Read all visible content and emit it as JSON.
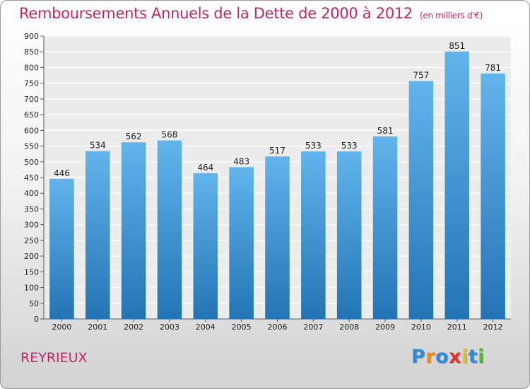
{
  "title": "Remboursements Annuels de la Dette de 2000 à 2012",
  "unit": "(en milliers d'€)",
  "location": "REYRIEUX",
  "brand": {
    "letters": [
      "P",
      "r",
      "o",
      "x",
      "i",
      "t",
      "i"
    ],
    "colors": [
      "#2e8bd8",
      "#f08a1c",
      "#2e8bd8",
      "#e0322e",
      "#d6c21e",
      "#2e8bd8",
      "#58b431"
    ]
  },
  "colors": {
    "bar_top": "#62b4ec",
    "bar_bottom": "#2374b4",
    "accent": "#c0275e"
  },
  "chart_data": {
    "type": "bar",
    "categories": [
      "2000",
      "2001",
      "2002",
      "2003",
      "2004",
      "2005",
      "2006",
      "2007",
      "2008",
      "2009",
      "2010",
      "2011",
      "2012"
    ],
    "values": [
      446,
      534,
      562,
      568,
      464,
      483,
      517,
      533,
      533,
      581,
      757,
      851,
      781
    ],
    "yticks": [
      0,
      50,
      100,
      150,
      200,
      250,
      300,
      350,
      400,
      450,
      500,
      550,
      600,
      650,
      700,
      750,
      800,
      850,
      900
    ],
    "ylim": [
      0,
      900
    ],
    "grid": true,
    "legend": "none",
    "data_labels": true
  }
}
